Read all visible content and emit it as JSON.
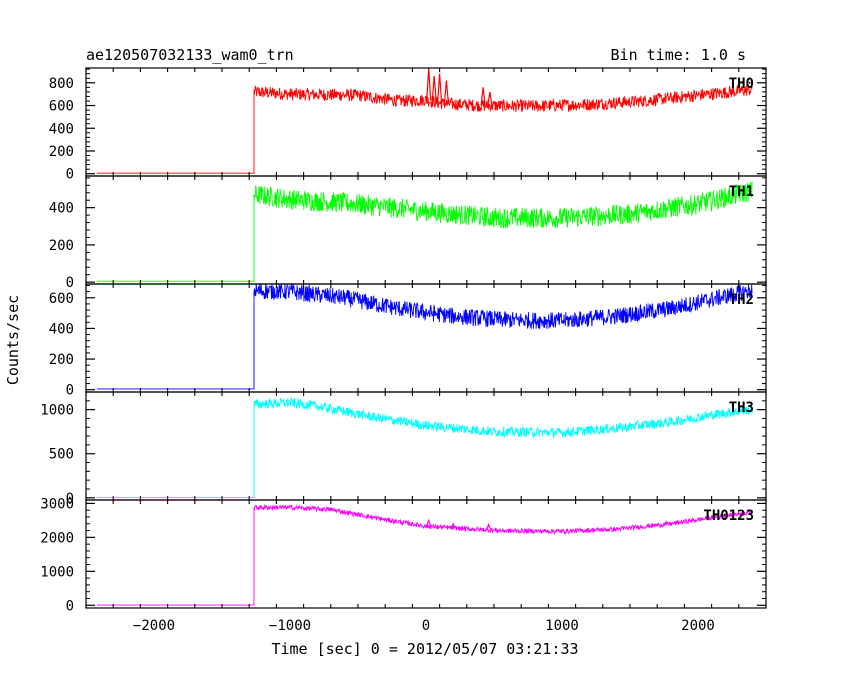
{
  "header": {
    "left": "ae120507032133_wam0_trn",
    "right": "Bin time: 1.0 s"
  },
  "chart_data": {
    "type": "line",
    "xlabel": "Time [sec] 0 = 2012/05/07 03:21:33",
    "ylabel": "Counts/sec",
    "xlim": [
      -2500,
      2500
    ],
    "x_ticks": [
      -2000,
      -1000,
      0,
      1000,
      2000
    ],
    "x_tick_labels": [
      "−2000",
      "−1000",
      "0",
      "1000",
      "2000"
    ],
    "step_time": -1265,
    "end_time": 2400,
    "start_time": -2420,
    "panels": [
      {
        "name": "TH0",
        "color": "#ff0000",
        "ylim": [
          -20,
          930
        ],
        "ticks": [
          0,
          200,
          400,
          600,
          800
        ],
        "noise": 55,
        "profile": [
          [
            -1260,
            720
          ],
          [
            -1000,
            700
          ],
          [
            -500,
            690
          ],
          [
            -200,
            640
          ],
          [
            0,
            650
          ],
          [
            100,
            620
          ],
          [
            400,
            600
          ],
          [
            800,
            595
          ],
          [
            1200,
            610
          ],
          [
            1600,
            640
          ],
          [
            2000,
            690
          ],
          [
            2400,
            740
          ]
        ],
        "spikes": [
          [
            20,
            930
          ],
          [
            60,
            860
          ],
          [
            100,
            880
          ],
          [
            150,
            820
          ],
          [
            420,
            760
          ],
          [
            470,
            720
          ]
        ]
      },
      {
        "name": "TH1",
        "color": "#00ff00",
        "ylim": [
          -10,
          570
        ],
        "ticks": [
          0,
          200,
          400
        ],
        "noise": 55,
        "profile": [
          [
            -1260,
            470
          ],
          [
            -1000,
            445
          ],
          [
            -500,
            420
          ],
          [
            0,
            380
          ],
          [
            500,
            345
          ],
          [
            1000,
            345
          ],
          [
            1500,
            365
          ],
          [
            2000,
            420
          ],
          [
            2400,
            490
          ]
        ],
        "spikes": []
      },
      {
        "name": "TH2",
        "color": "#0000ff",
        "ylim": [
          -15,
          690
        ],
        "ticks": [
          0,
          200,
          400,
          600
        ],
        "noise": 55,
        "profile": [
          [
            -1260,
            645
          ],
          [
            -1000,
            640
          ],
          [
            -600,
            600
          ],
          [
            -200,
            530
          ],
          [
            200,
            480
          ],
          [
            600,
            455
          ],
          [
            1000,
            450
          ],
          [
            1400,
            480
          ],
          [
            1800,
            530
          ],
          [
            2100,
            590
          ],
          [
            2400,
            650
          ]
        ],
        "spikes": []
      },
      {
        "name": "TH3",
        "color": "#00ffff",
        "ylim": [
          -25,
          1200
        ],
        "ticks": [
          0,
          500,
          1000
        ],
        "noise": 55,
        "profile": [
          [
            -1260,
            1060
          ],
          [
            -1000,
            1080
          ],
          [
            -800,
            1040
          ],
          [
            -400,
            920
          ],
          [
            0,
            820
          ],
          [
            500,
            750
          ],
          [
            1000,
            740
          ],
          [
            1400,
            790
          ],
          [
            1800,
            860
          ],
          [
            2100,
            940
          ],
          [
            2400,
            1000
          ]
        ],
        "spikes": []
      },
      {
        "name": "TH0123",
        "color": "#ff00ff",
        "ylim": [
          -80,
          3100
        ],
        "ticks": [
          0,
          1000,
          2000,
          3000
        ],
        "noise": 70,
        "profile": [
          [
            -1260,
            2880
          ],
          [
            -1000,
            2880
          ],
          [
            -700,
            2820
          ],
          [
            -300,
            2520
          ],
          [
            0,
            2330
          ],
          [
            300,
            2250
          ],
          [
            600,
            2190
          ],
          [
            1000,
            2180
          ],
          [
            1400,
            2240
          ],
          [
            1800,
            2400
          ],
          [
            2100,
            2580
          ],
          [
            2400,
            2750
          ]
        ],
        "spikes": [
          [
            20,
            2500
          ],
          [
            200,
            2400
          ],
          [
            460,
            2380
          ]
        ]
      }
    ],
    "baseline": 5
  }
}
